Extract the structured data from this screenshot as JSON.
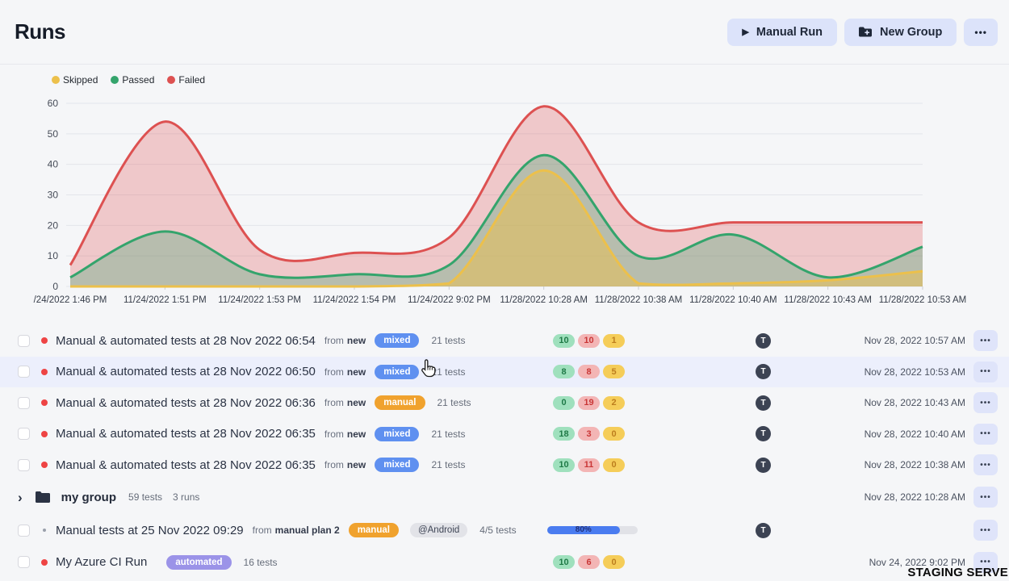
{
  "page": {
    "title": "Runs",
    "watermark": "STAGING SERVER"
  },
  "icons": {
    "play": "▶",
    "ellipsis": "•••",
    "chevron": "›"
  },
  "header": {
    "buttons": [
      {
        "label": "Manual Run",
        "icon": "play-icon"
      },
      {
        "label": "New Group",
        "icon": "folder-plus-icon"
      },
      {
        "label": "•••",
        "icon": "ellipsis-icon"
      }
    ]
  },
  "chart_data": {
    "type": "area",
    "title": "",
    "xlabel": "",
    "ylabel": "",
    "ylim": [
      0,
      60
    ],
    "yticks": [
      0,
      10,
      20,
      30,
      40,
      50,
      60
    ],
    "grid": true,
    "legend_position": "top-left",
    "x_labels": [
      "/24/2022 1:46 PM",
      "11/24/2022 1:51 PM",
      "11/24/2022 1:53 PM",
      "11/24/2022 1:54 PM",
      "11/24/2022 9:02 PM",
      "11/28/2022 10:28 AM",
      "11/28/2022 10:38 AM",
      "11/28/2022 10:40 AM",
      "11/28/2022 10:43 AM",
      "11/28/2022 10:53 AM"
    ],
    "series": [
      {
        "name": "Skipped",
        "color": "#ecc04b",
        "fill": "rgba(236,192,75,0.50)",
        "values": [
          0,
          0,
          0,
          0,
          1,
          38,
          1,
          1,
          2,
          5
        ]
      },
      {
        "name": "Passed",
        "color": "#34a46c",
        "fill": "rgba(52,164,108,0.30)",
        "values": [
          3,
          18,
          4,
          4,
          7,
          43,
          10,
          17,
          3,
          13
        ]
      },
      {
        "name": "Failed",
        "color": "#dd5151",
        "fill": "rgba(221,81,81,0.28)",
        "values": [
          7,
          54,
          12,
          11,
          16,
          59,
          21,
          21,
          21,
          21
        ]
      }
    ]
  },
  "runs": {
    "rows": [
      {
        "type": "run",
        "dot": "red",
        "title": "Manual & automated tests at 28 Nov 2022 06:54",
        "from_label": "from",
        "from_value": "new",
        "pill": {
          "label": "mixed",
          "kind": "mixed"
        },
        "tests": "21 tests",
        "counts": [
          {
            "value": "10",
            "kind": "passed"
          },
          {
            "value": "10",
            "kind": "failed"
          },
          {
            "value": "1",
            "kind": "skipped"
          }
        ],
        "avatar": "T",
        "timestamp": "Nov 28, 2022 10:57 AM",
        "menu": "•••"
      },
      {
        "type": "run",
        "dot": "red",
        "highlighted": true,
        "title": "Manual & automated tests at 28 Nov 2022 06:50",
        "from_label": "from",
        "from_value": "new",
        "pill": {
          "label": "mixed",
          "kind": "mixed"
        },
        "tests": "21 tests",
        "counts": [
          {
            "value": "8",
            "kind": "passed"
          },
          {
            "value": "8",
            "kind": "failed"
          },
          {
            "value": "5",
            "kind": "skipped"
          }
        ],
        "avatar": "T",
        "timestamp": "Nov 28, 2022 10:53 AM",
        "menu": "•••"
      },
      {
        "type": "run",
        "dot": "red",
        "title": "Manual & automated tests at 28 Nov 2022 06:36",
        "from_label": "from",
        "from_value": "new",
        "pill": {
          "label": "manual",
          "kind": "manual"
        },
        "tests": "21 tests",
        "counts": [
          {
            "value": "0",
            "kind": "passed"
          },
          {
            "value": "19",
            "kind": "failed"
          },
          {
            "value": "2",
            "kind": "skipped"
          }
        ],
        "avatar": "T",
        "timestamp": "Nov 28, 2022 10:43 AM",
        "menu": "•••"
      },
      {
        "type": "run",
        "dot": "red",
        "title": "Manual & automated tests at 28 Nov 2022 06:35",
        "from_label": "from",
        "from_value": "new",
        "pill": {
          "label": "mixed",
          "kind": "mixed"
        },
        "tests": "21 tests",
        "counts": [
          {
            "value": "18",
            "kind": "passed"
          },
          {
            "value": "3",
            "kind": "failed"
          },
          {
            "value": "0",
            "kind": "skipped"
          }
        ],
        "avatar": "T",
        "timestamp": "Nov 28, 2022 10:40 AM",
        "menu": "•••"
      },
      {
        "type": "run",
        "dot": "red",
        "title": "Manual & automated tests at 28 Nov 2022 06:35",
        "from_label": "from",
        "from_value": "new",
        "pill": {
          "label": "mixed",
          "kind": "mixed"
        },
        "tests": "21 tests",
        "counts": [
          {
            "value": "10",
            "kind": "passed"
          },
          {
            "value": "11",
            "kind": "failed"
          },
          {
            "value": "0",
            "kind": "skipped"
          }
        ],
        "avatar": "T",
        "timestamp": "Nov 28, 2022 10:38 AM",
        "menu": "•••"
      },
      {
        "type": "group",
        "name": "my group",
        "tests": "59 tests",
        "runs_count": "3 runs",
        "timestamp": "Nov 28, 2022 10:28 AM",
        "menu": "•••"
      },
      {
        "type": "run",
        "dot": "grey",
        "tall": true,
        "title": "Manual tests at 25 Nov 2022 09:29",
        "from_label": "from",
        "from_value": "manual plan 2",
        "pill": {
          "label": "manual",
          "kind": "manual"
        },
        "tag": "@Android",
        "tests": "4/5 tests",
        "progress": {
          "percent": 80,
          "label": "80%"
        },
        "avatar": "T",
        "menu": "•••"
      },
      {
        "type": "run",
        "dot": "red",
        "title": "My Azure CI Run",
        "pill": {
          "label": "automated",
          "kind": "automated"
        },
        "tests": "16 tests",
        "counts": [
          {
            "value": "10",
            "kind": "passed"
          },
          {
            "value": "6",
            "kind": "failed"
          },
          {
            "value": "0",
            "kind": "skipped"
          }
        ],
        "timestamp": "Nov 24, 2022 9:02 PM",
        "menu": "•••"
      }
    ]
  }
}
